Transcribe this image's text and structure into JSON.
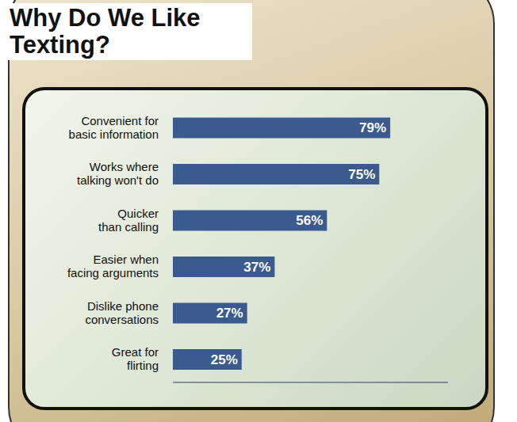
{
  "chart_data": {
    "type": "bar",
    "orientation": "horizontal",
    "title": "Why Do We Like Texting?",
    "categories": [
      "Convenient for basic information",
      "Works where talking won't do",
      "Quicker than calling",
      "Easier when facing arguments",
      "Dislike phone conversations",
      "Great for flirting"
    ],
    "values": [
      79,
      75,
      56,
      37,
      27,
      25
    ],
    "value_labels": [
      "79%",
      "75%",
      "56%",
      "37%",
      "27%",
      "25%"
    ],
    "data_labels": true,
    "color": "#3b5b8e",
    "xlim": [
      0,
      100
    ],
    "xticks": [],
    "tick_labels": "y",
    "grid": false
  }
}
